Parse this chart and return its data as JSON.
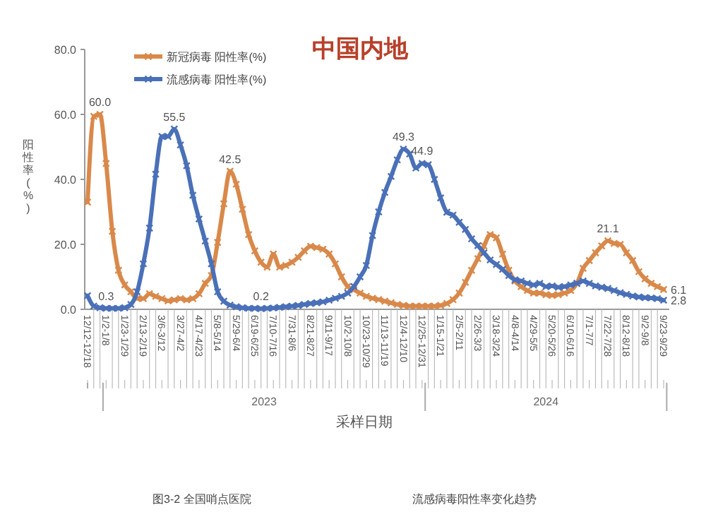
{
  "chart_data": {
    "type": "line",
    "title": "中国内地",
    "xlabel": "采样日期",
    "ylabel": "阳性率(%)",
    "categories": [
      "12/12-12/18",
      null,
      null,
      "1/2-1/8",
      null,
      null,
      "1/23-1/29",
      null,
      null,
      "2/13-2/19",
      null,
      null,
      "3/6-3/12",
      null,
      null,
      "3/27-4/2",
      null,
      null,
      "4/17-4/23",
      null,
      null,
      "5/8-5/14",
      null,
      null,
      "5/29-6/4",
      null,
      null,
      "6/19-6/25",
      null,
      null,
      "7/10-7/16",
      null,
      null,
      "7/31-8/6",
      null,
      null,
      "8/21-8/27",
      null,
      null,
      "9/11-9/17",
      null,
      null,
      "10/2-10/8",
      null,
      null,
      "10/23-10/29",
      null,
      null,
      "11/13-11/19",
      null,
      null,
      "12/4-12/10",
      null,
      null,
      "12/25-12/31",
      null,
      null,
      "1/15-1/21",
      null,
      null,
      "2/5-2/11",
      null,
      null,
      "2/26-3/3",
      null,
      null,
      "3/18-3/24",
      null,
      null,
      "4/8-4/14",
      null,
      null,
      "4/29-5/5",
      null,
      null,
      "5/20-5/26",
      null,
      null,
      "6/10-6/16",
      null,
      null,
      "7/1-7/7",
      null,
      null,
      "7/22-7/28",
      null,
      null,
      "8/12-8/18",
      null,
      null,
      "9/2-9/8",
      null,
      null,
      "9/23-9/29"
    ],
    "series": [
      {
        "name": "新冠病毒 阳性率(%)",
        "color": "#d9894a",
        "values": [
          33,
          59.4,
          60,
          44.9,
          24,
          12,
          7.5,
          5.4,
          3.3,
          3.3,
          4.8,
          4,
          3.3,
          2.6,
          2.9,
          3.3,
          2.9,
          3.3,
          4.8,
          8,
          10.4,
          20.6,
          32.5,
          42.5,
          38.5,
          30.8,
          23,
          18,
          14.5,
          13,
          17,
          13,
          13.5,
          14.5,
          16,
          18,
          19.4,
          19,
          18.5,
          17,
          14,
          10,
          7,
          6,
          5,
          4,
          3.4,
          3,
          2.5,
          2,
          1.5,
          1.2,
          1,
          1,
          1,
          1,
          1,
          1.2,
          1.8,
          3,
          5,
          8.3,
          12,
          15.6,
          19.5,
          23,
          22,
          17,
          12,
          8.7,
          7,
          5.8,
          5,
          5,
          4.5,
          4.3,
          4.5,
          5,
          5.8,
          8,
          12.6,
          15,
          17.4,
          19.5,
          21.1,
          20.3,
          20,
          17.4,
          15,
          11.6,
          9.4,
          8,
          7,
          6.1
        ],
        "value_labels": [
          null,
          null,
          "60.0",
          null,
          null,
          null,
          null,
          null,
          null,
          null,
          null,
          null,
          null,
          null,
          null,
          null,
          null,
          null,
          null,
          null,
          null,
          null,
          null,
          "42.5",
          null,
          null,
          null,
          null,
          null,
          null,
          null,
          null,
          null,
          null,
          null,
          null,
          null,
          null,
          null,
          null,
          null,
          null,
          null,
          null,
          null,
          null,
          null,
          null,
          null,
          null,
          null,
          null,
          null,
          null,
          null,
          null,
          null,
          null,
          null,
          null,
          null,
          null,
          null,
          null,
          null,
          null,
          null,
          null,
          null,
          null,
          null,
          null,
          null,
          null,
          null,
          null,
          null,
          null,
          null,
          null,
          null,
          null,
          null,
          null,
          "21.1",
          null,
          null,
          null,
          null,
          null,
          null,
          null,
          null,
          "6.1"
        ]
      },
      {
        "name": "流感病毒 阳性率(%)",
        "color": "#4a70b8",
        "values": [
          4.2,
          1,
          0.5,
          0.3,
          0.3,
          0.3,
          0.5,
          1.5,
          5.4,
          14,
          25,
          41.6,
          53.2,
          53.2,
          55.5,
          50.6,
          44.2,
          35.1,
          27.8,
          21,
          14,
          5.4,
          2.5,
          1.3,
          0.8,
          0.5,
          0.3,
          0.3,
          0.2,
          0.3,
          0.4,
          0.6,
          0.8,
          1,
          1.2,
          1.5,
          1.8,
          2,
          2.3,
          2.8,
          3.4,
          4,
          5,
          7,
          10,
          13.5,
          22.7,
          30,
          36,
          40.9,
          46,
          49.3,
          47.8,
          43.5,
          44.9,
          44.5,
          40,
          34.3,
          29.9,
          29,
          26.8,
          24.6,
          21.7,
          19.6,
          17.4,
          15.2,
          13.8,
          12.3,
          10.4,
          9.1,
          8.7,
          8,
          7.5,
          8,
          7,
          7.2,
          6.8,
          7,
          7.5,
          8,
          8.7,
          8,
          7.2,
          6.8,
          6.4,
          5.8,
          5.1,
          4.6,
          4.1,
          3.8,
          3.6,
          3.5,
          3.3,
          2.8
        ],
        "value_labels": [
          null,
          null,
          null,
          "0.3",
          null,
          null,
          null,
          null,
          null,
          null,
          null,
          null,
          null,
          null,
          "55.5",
          null,
          null,
          null,
          null,
          null,
          null,
          null,
          null,
          null,
          null,
          null,
          null,
          null,
          "0.2",
          null,
          null,
          null,
          null,
          null,
          null,
          null,
          null,
          null,
          null,
          null,
          null,
          null,
          null,
          null,
          null,
          null,
          null,
          null,
          null,
          null,
          null,
          "49.3",
          null,
          null,
          "44.9",
          null,
          null,
          null,
          null,
          null,
          null,
          null,
          null,
          null,
          null,
          null,
          null,
          null,
          null,
          null,
          null,
          null,
          null,
          null,
          null,
          null,
          null,
          null,
          null,
          null,
          null,
          null,
          null,
          null,
          null,
          null,
          null,
          null,
          null,
          null,
          null,
          null,
          null,
          "2.8"
        ]
      }
    ],
    "ylim": [
      0,
      80
    ],
    "yticks": [
      {
        "value": 0,
        "label": "0.0"
      },
      {
        "value": 20,
        "label": "20.0"
      },
      {
        "value": 40,
        "label": "40.0"
      },
      {
        "value": 60,
        "label": "60.0"
      },
      {
        "value": 80,
        "label": "80.0"
      }
    ],
    "grid": false,
    "legend": "top left",
    "marker": "cross",
    "line_style": "solid",
    "annotations": [
      "2023",
      "2024",
      "图3-2 全国哨点医院",
      "流感病毒阳性率变化趋势"
    ]
  }
}
